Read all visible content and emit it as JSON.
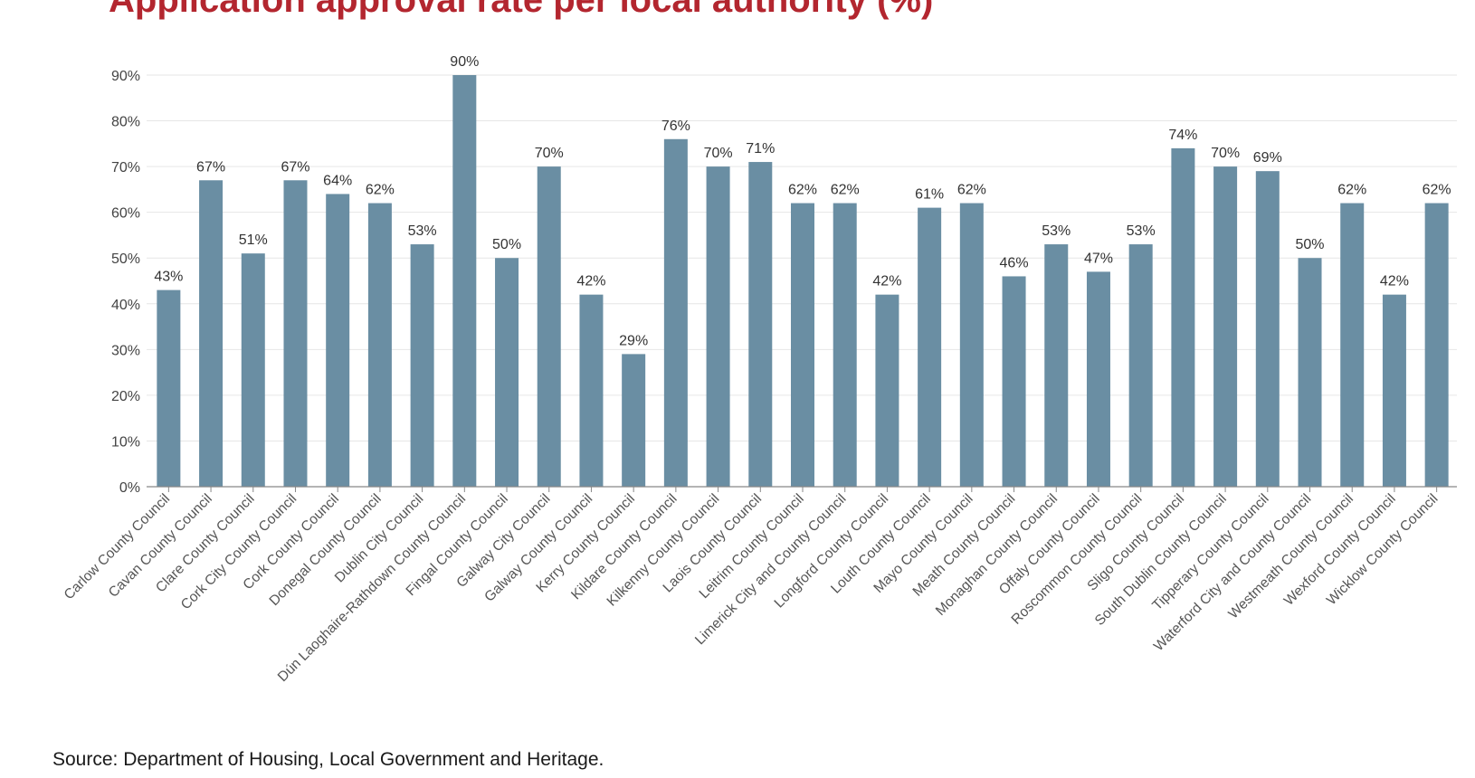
{
  "chart_data": {
    "type": "bar",
    "title": "Application approval rate per local authority (%)",
    "source": "Source: Department of Housing, Local Government and Heritage.",
    "xlabel": "",
    "ylabel": "",
    "ylim": [
      0,
      90
    ],
    "yticks": [
      0,
      10,
      20,
      30,
      40,
      50,
      60,
      70,
      80,
      90
    ],
    "tick_suffix": "%",
    "grid": true,
    "bar_color": "#6a8ea3",
    "title_color": "#b3262f",
    "categories": [
      "Carlow County Council",
      "Cavan County Council",
      "Clare County Council",
      "Cork City County Council",
      "Cork County Council",
      "Donegal County Council",
      "Dublin City Council",
      "Dún Laoghaire-Rathdown County Council",
      "Fingal County Council",
      "Galway City Council",
      "Galway County Council",
      "Kerry County Council",
      "Kildare County Council",
      "Kilkenny County Council",
      "Laois County Council",
      "Leitrim County Council",
      "Limerick City and County Council",
      "Longford County Council",
      "Louth County Council",
      "Mayo County Council",
      "Meath County Council",
      "Monaghan County Council",
      "Offaly County Council",
      "Roscommon County Council",
      "Sligo County Council",
      "South Dublin County Council",
      "Tipperary County Council",
      "Waterford City and County Council",
      "Westmeath County Council",
      "Wexford County Council",
      "Wicklow County Council"
    ],
    "values": [
      43,
      67,
      51,
      67,
      64,
      62,
      53,
      90,
      50,
      70,
      42,
      29,
      76,
      70,
      71,
      62,
      62,
      42,
      61,
      62,
      46,
      53,
      47,
      53,
      74,
      70,
      69,
      50,
      62,
      42,
      62
    ]
  }
}
